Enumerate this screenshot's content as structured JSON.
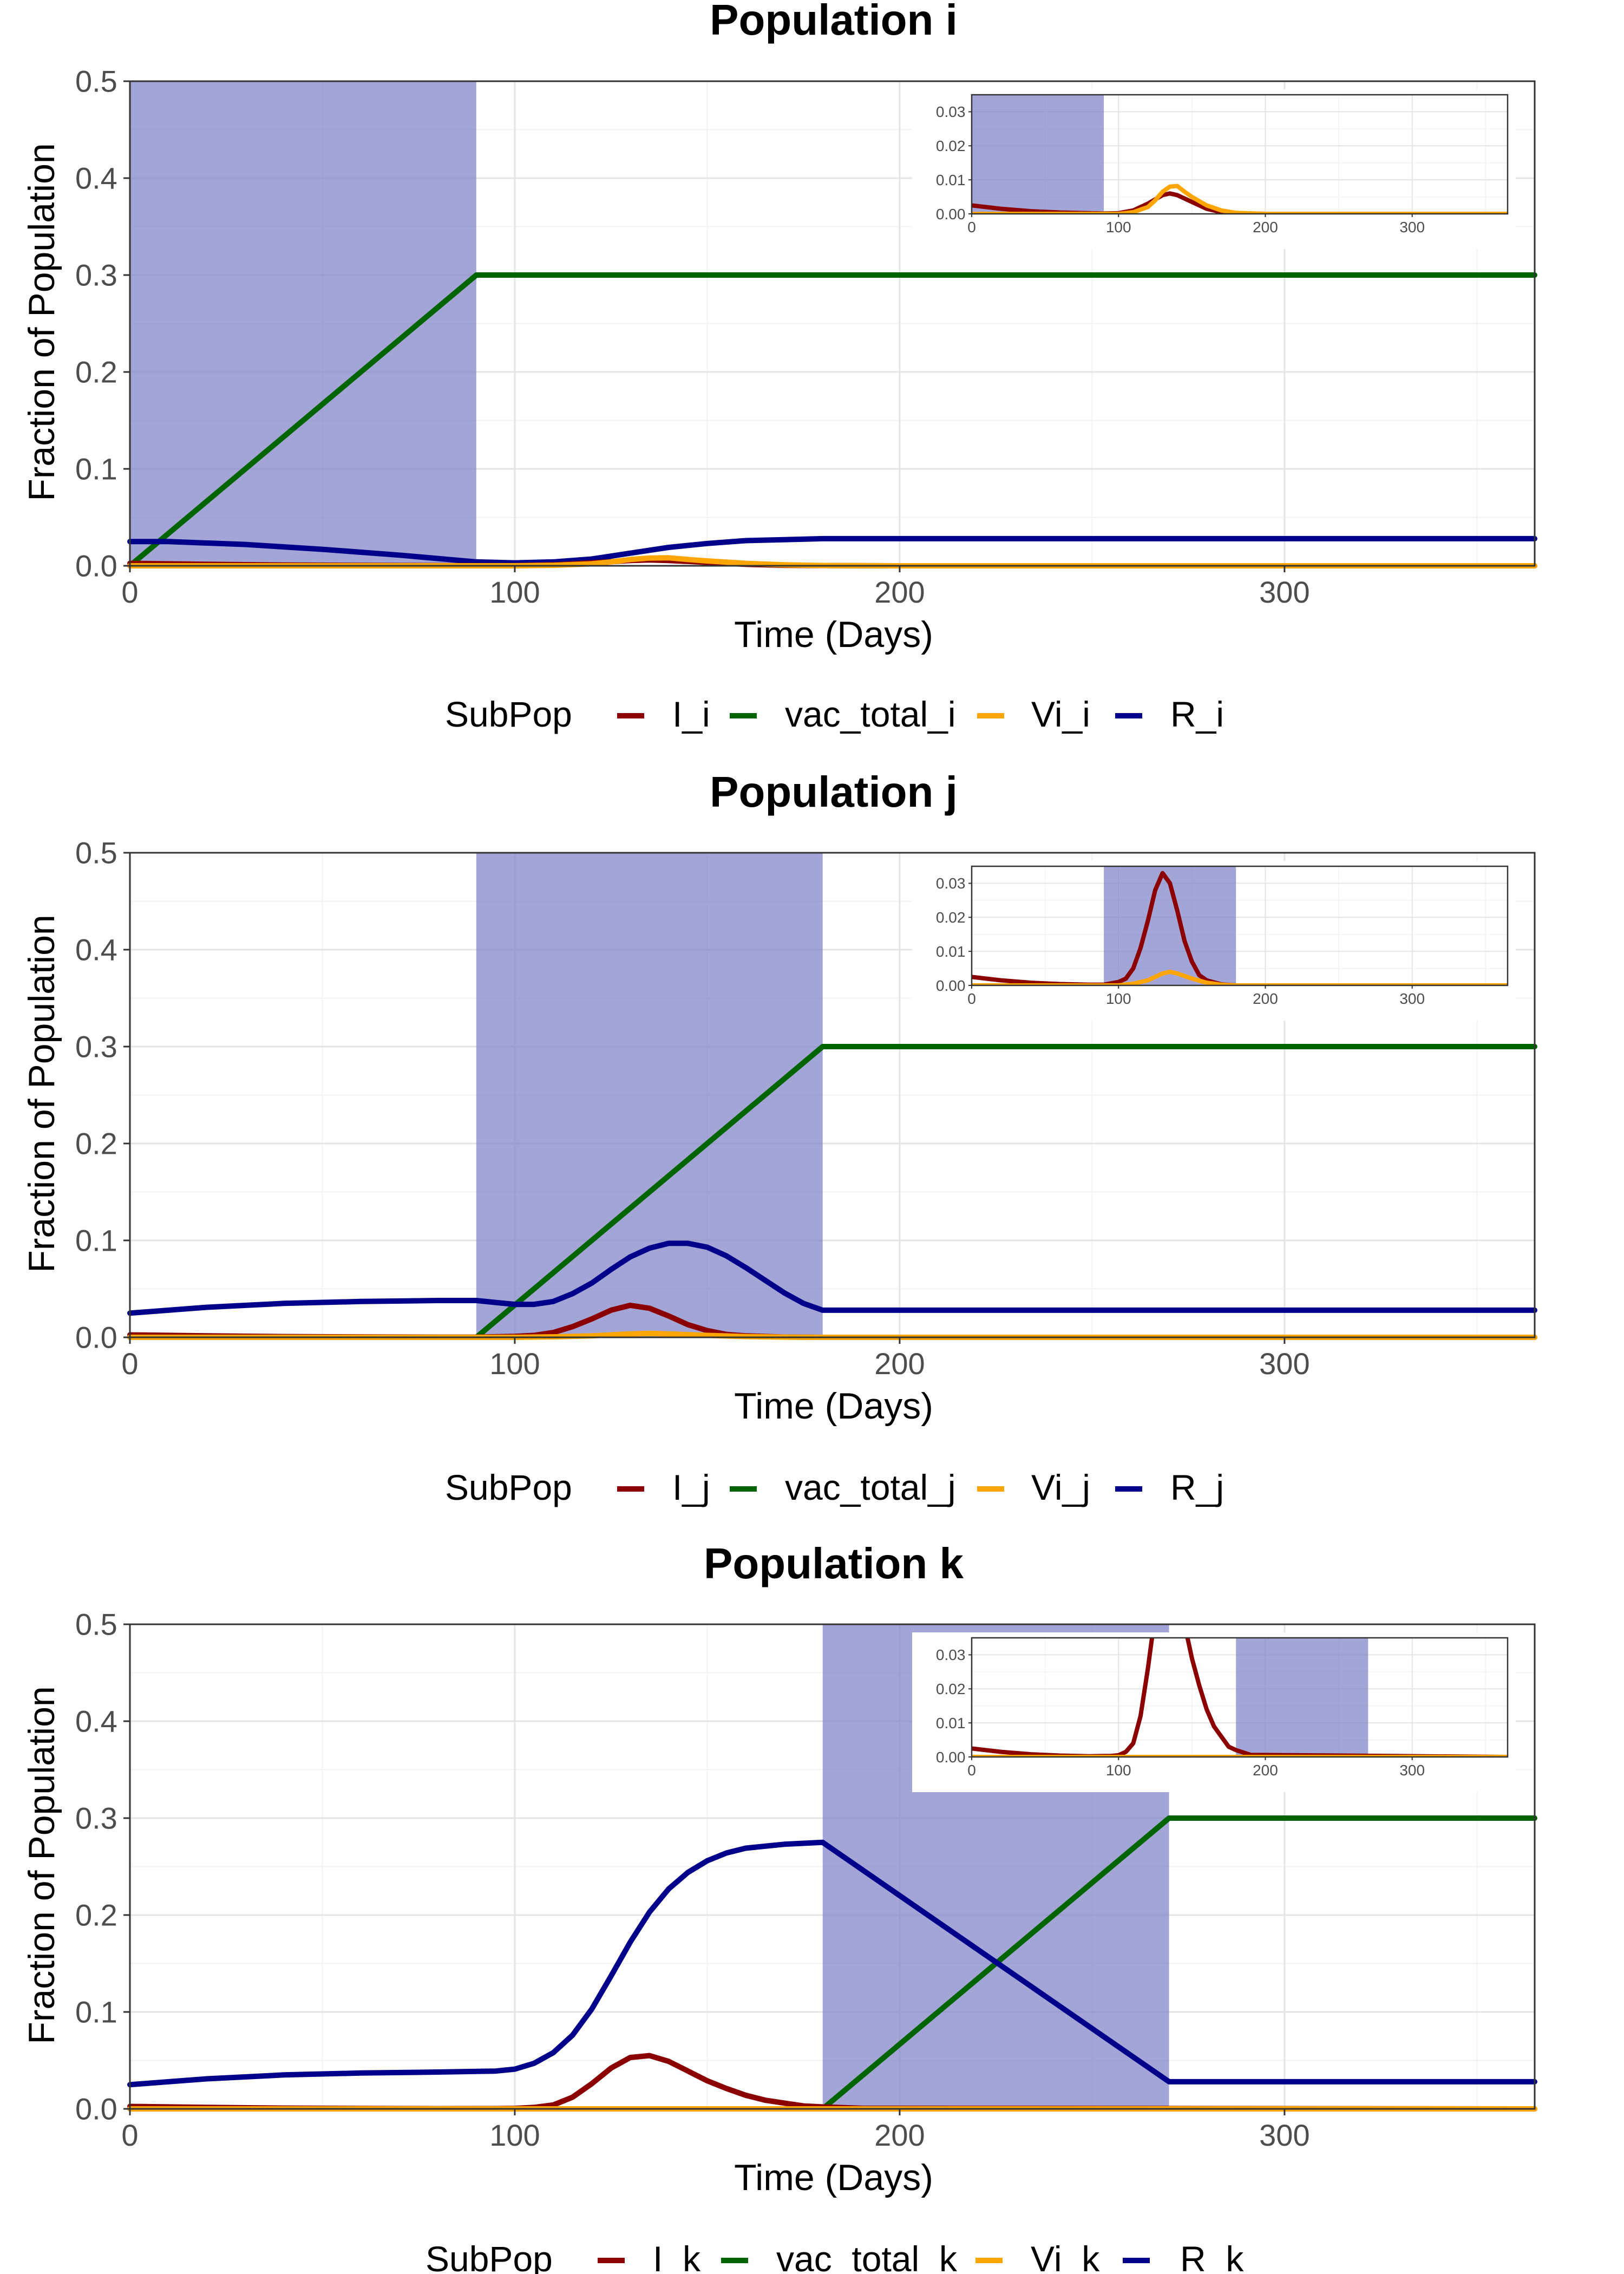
{
  "panels": [
    {
      "title": "Population i",
      "xlabel": "Time (Days)",
      "ylabel": "Fraction of Population",
      "legend_title": "SubPop",
      "legend_labels": [
        "I_i",
        "vac_total_i",
        "Vi_i",
        "R_i"
      ]
    },
    {
      "title": "Population j",
      "xlabel": "Time (Days)",
      "ylabel": "Fraction of Population",
      "legend_title": "SubPop",
      "legend_labels": [
        "I_j",
        "vac_total_j",
        "Vi_j",
        "R_j"
      ]
    },
    {
      "title": "Population k",
      "xlabel": "Time (Days)",
      "ylabel": "Fraction of Population",
      "legend_title": "SubPop",
      "legend_labels": [
        "I_k",
        "vac_total_k",
        "Vi_k",
        "R_k"
      ]
    }
  ],
  "colors": {
    "I": "#8B0000",
    "vac_total": "#006400",
    "Vi": "#FFA500",
    "R": "#00008B",
    "shade": "#7B7FC4"
  },
  "chart_data": [
    {
      "type": "line",
      "title": "Population i",
      "xlabel": "Time (Days)",
      "ylabel": "Fraction of Population",
      "xlim": [
        0,
        365
      ],
      "ylim": [
        0,
        0.5
      ],
      "x_ticks": [
        0,
        100,
        200,
        300
      ],
      "y_ticks": [
        0.0,
        0.1,
        0.2,
        0.3,
        0.4,
        0.5
      ],
      "shaded_x": [
        0,
        90
      ],
      "series": [
        {
          "name": "I_i",
          "color": "#8B0000",
          "x": [
            0,
            20,
            40,
            60,
            80,
            90,
            100,
            110,
            120,
            130,
            135,
            140,
            150,
            160,
            170,
            180,
            200,
            365
          ],
          "y": [
            0.0025,
            0.0015,
            0.0008,
            0.0004,
            0.0002,
            0.0001,
            0.0002,
            0.001,
            0.003,
            0.0055,
            0.006,
            0.0055,
            0.0035,
            0.0015,
            0.0005,
            0.0002,
            0.0,
            0.0
          ]
        },
        {
          "name": "vac_total_i",
          "color": "#006400",
          "x": [
            0,
            90,
            365
          ],
          "y": [
            0.0,
            0.3,
            0.3
          ]
        },
        {
          "name": "Vi_i",
          "color": "#FFA500",
          "x": [
            0,
            100,
            110,
            120,
            125,
            130,
            135,
            140,
            145,
            150,
            160,
            170,
            180,
            200,
            365
          ],
          "y": [
            0.0,
            0.0,
            0.0005,
            0.002,
            0.004,
            0.0065,
            0.008,
            0.0082,
            0.0065,
            0.005,
            0.0025,
            0.001,
            0.0003,
            0.0,
            0.0
          ]
        },
        {
          "name": "R_i",
          "color": "#00008B",
          "x": [
            0,
            10,
            30,
            50,
            70,
            90,
            100,
            110,
            120,
            130,
            140,
            150,
            160,
            170,
            180,
            200,
            365
          ],
          "y": [
            0.025,
            0.025,
            0.022,
            0.017,
            0.011,
            0.004,
            0.003,
            0.004,
            0.007,
            0.013,
            0.019,
            0.023,
            0.026,
            0.027,
            0.028,
            0.028,
            0.028
          ]
        }
      ],
      "inset": {
        "xlim": [
          0,
          365
        ],
        "ylim": [
          0,
          0.035
        ],
        "x_ticks": [
          0,
          100,
          200,
          300
        ],
        "y_ticks": [
          0.0,
          0.01,
          0.02,
          0.03
        ],
        "shaded_x": [
          0,
          90
        ],
        "series_names": [
          "I_i",
          "Vi_i"
        ]
      }
    },
    {
      "type": "line",
      "title": "Population j",
      "xlabel": "Time (Days)",
      "ylabel": "Fraction of Population",
      "xlim": [
        0,
        365
      ],
      "ylim": [
        0,
        0.5
      ],
      "x_ticks": [
        0,
        100,
        200,
        300
      ],
      "y_ticks": [
        0.0,
        0.1,
        0.2,
        0.3,
        0.4,
        0.5
      ],
      "shaded_x": [
        90,
        180
      ],
      "series": [
        {
          "name": "I_j",
          "color": "#8B0000",
          "x": [
            0,
            20,
            40,
            60,
            80,
            90,
            100,
            105,
            110,
            115,
            120,
            125,
            130,
            135,
            140,
            145,
            150,
            155,
            160,
            170,
            180,
            365
          ],
          "y": [
            0.0025,
            0.0015,
            0.0008,
            0.0004,
            0.0002,
            0.0002,
            0.001,
            0.002,
            0.005,
            0.011,
            0.019,
            0.028,
            0.033,
            0.03,
            0.022,
            0.013,
            0.007,
            0.003,
            0.0015,
            0.0003,
            0.0,
            0.0
          ]
        },
        {
          "name": "vac_total_j",
          "color": "#006400",
          "x": [
            0,
            90,
            180,
            365
          ],
          "y": [
            0.0,
            0.0,
            0.3,
            0.3
          ]
        },
        {
          "name": "Vi_j",
          "color": "#FFA500",
          "x": [
            0,
            100,
            110,
            120,
            130,
            135,
            140,
            150,
            160,
            170,
            180,
            365
          ],
          "y": [
            0.0,
            0.0,
            0.0005,
            0.0015,
            0.0035,
            0.004,
            0.0035,
            0.002,
            0.0008,
            0.0002,
            0.0,
            0.0
          ]
        },
        {
          "name": "R_j",
          "color": "#00008B",
          "x": [
            0,
            20,
            40,
            60,
            80,
            90,
            95,
            100,
            105,
            110,
            115,
            120,
            125,
            130,
            135,
            140,
            145,
            150,
            155,
            160,
            165,
            170,
            175,
            180,
            365
          ],
          "y": [
            0.025,
            0.031,
            0.035,
            0.037,
            0.038,
            0.038,
            0.036,
            0.034,
            0.034,
            0.037,
            0.045,
            0.056,
            0.07,
            0.083,
            0.092,
            0.097,
            0.097,
            0.093,
            0.084,
            0.072,
            0.059,
            0.046,
            0.035,
            0.028,
            0.028
          ]
        }
      ],
      "inset": {
        "xlim": [
          0,
          365
        ],
        "ylim": [
          0,
          0.035
        ],
        "x_ticks": [
          0,
          100,
          200,
          300
        ],
        "y_ticks": [
          0.0,
          0.01,
          0.02,
          0.03
        ],
        "shaded_x": [
          90,
          180
        ],
        "series_names": [
          "I_j",
          "Vi_j"
        ]
      }
    },
    {
      "type": "line",
      "title": "Population k",
      "xlabel": "Time (Days)",
      "ylabel": "Fraction of Population",
      "xlim": [
        0,
        365
      ],
      "ylim": [
        0,
        0.5
      ],
      "x_ticks": [
        0,
        100,
        200,
        300
      ],
      "y_ticks": [
        0.0,
        0.1,
        0.2,
        0.3,
        0.4,
        0.5
      ],
      "shaded_x": [
        180,
        270
      ],
      "series": [
        {
          "name": "I_k",
          "color": "#8B0000",
          "x": [
            0,
            20,
            40,
            60,
            80,
            95,
            100,
            105,
            110,
            115,
            120,
            125,
            130,
            135,
            140,
            145,
            150,
            155,
            160,
            165,
            170,
            175,
            180,
            190,
            365
          ],
          "y": [
            0.0025,
            0.0015,
            0.0008,
            0.0004,
            0.0002,
            0.0003,
            0.0005,
            0.0015,
            0.004,
            0.012,
            0.026,
            0.042,
            0.053,
            0.055,
            0.049,
            0.039,
            0.029,
            0.021,
            0.014,
            0.009,
            0.006,
            0.003,
            0.002,
            0.0006,
            0.0
          ]
        },
        {
          "name": "vac_total_k",
          "color": "#006400",
          "x": [
            0,
            180,
            270,
            365
          ],
          "y": [
            0.0,
            0.0,
            0.3,
            0.3
          ]
        },
        {
          "name": "Vi_k",
          "color": "#FFA500",
          "x": [
            0,
            365
          ],
          "y": [
            0.0,
            0.0
          ]
        },
        {
          "name": "R_k",
          "color": "#00008B",
          "x": [
            0,
            20,
            40,
            60,
            80,
            95,
            100,
            105,
            110,
            115,
            120,
            125,
            130,
            135,
            140,
            145,
            150,
            155,
            160,
            165,
            170,
            175,
            180,
            270,
            365
          ],
          "y": [
            0.025,
            0.031,
            0.035,
            0.037,
            0.038,
            0.039,
            0.041,
            0.047,
            0.058,
            0.076,
            0.103,
            0.137,
            0.172,
            0.203,
            0.227,
            0.244,
            0.256,
            0.264,
            0.269,
            0.271,
            0.273,
            0.274,
            0.275,
            0.028,
            0.028
          ]
        }
      ],
      "inset": {
        "xlim": [
          0,
          365
        ],
        "ylim": [
          0,
          0.035
        ],
        "x_ticks": [
          0,
          100,
          200,
          300
        ],
        "y_ticks": [
          0.0,
          0.01,
          0.02,
          0.03
        ],
        "shaded_x": [
          180,
          270
        ],
        "series_names": [
          "I_k",
          "Vi_k"
        ]
      }
    }
  ]
}
